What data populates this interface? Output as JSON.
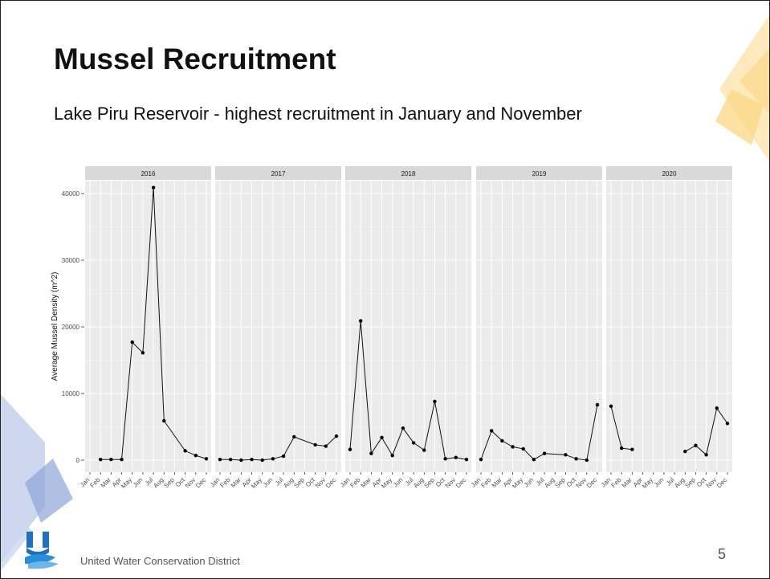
{
  "slide": {
    "title": "Mussel Recruitment",
    "subtitle": "Lake Piru Reservoir - highest recruitment in January and November",
    "footer_org": "United Water Conservation District",
    "page_number": "5",
    "accent_colors": {
      "yellow": "#fbd784",
      "blue": "#b8c7e8"
    }
  },
  "chart_data": {
    "type": "line",
    "ylabel": "Average Mussel Density (m^2)",
    "ylim": [
      0,
      40000
    ],
    "yticks": [
      0,
      10000,
      20000,
      30000,
      40000
    ],
    "categories": [
      "Jan",
      "Feb",
      "Mar",
      "Apr",
      "May",
      "Jun",
      "Jul",
      "Aug",
      "Sep",
      "Oct",
      "Nov",
      "Dec"
    ],
    "grid": true,
    "panel_background": "#ebebeb",
    "strip_background": "#d9d9d9",
    "panels": [
      {
        "label": "2016",
        "points": [
          {
            "m": 2,
            "v": 100
          },
          {
            "m": 3,
            "v": 100
          },
          {
            "m": 4,
            "v": 100
          },
          {
            "m": 5,
            "v": 17700
          },
          {
            "m": 6,
            "v": 16100
          },
          {
            "m": 7,
            "v": 40900
          },
          {
            "m": 8,
            "v": 5900
          },
          {
            "m": 10,
            "v": 1400
          },
          {
            "m": 11,
            "v": 700
          },
          {
            "m": 12,
            "v": 200
          }
        ],
        "segments": [
          [
            0,
            1,
            2,
            3,
            4,
            5,
            6,
            7,
            8,
            9
          ]
        ]
      },
      {
        "label": "2017",
        "points": [
          {
            "m": 1,
            "v": 100
          },
          {
            "m": 2,
            "v": 100
          },
          {
            "m": 3,
            "v": 0
          },
          {
            "m": 4,
            "v": 100
          },
          {
            "m": 5,
            "v": 0
          },
          {
            "m": 6,
            "v": 200
          },
          {
            "m": 7,
            "v": 600
          },
          {
            "m": 8,
            "v": 3500
          },
          {
            "m": 10,
            "v": 2300
          },
          {
            "m": 11,
            "v": 2100
          },
          {
            "m": 12,
            "v": 3600
          }
        ],
        "segments": [
          [
            0,
            1,
            2,
            3,
            4,
            5,
            6,
            7,
            8,
            9,
            10
          ]
        ]
      },
      {
        "label": "2018",
        "points": [
          {
            "m": 1,
            "v": 1600
          },
          {
            "m": 2,
            "v": 20900
          },
          {
            "m": 3,
            "v": 1000
          },
          {
            "m": 4,
            "v": 3400
          },
          {
            "m": 5,
            "v": 700
          },
          {
            "m": 6,
            "v": 4800
          },
          {
            "m": 7,
            "v": 2600
          },
          {
            "m": 8,
            "v": 1500
          },
          {
            "m": 9,
            "v": 8800
          },
          {
            "m": 10,
            "v": 200
          },
          {
            "m": 11,
            "v": 400
          },
          {
            "m": 12,
            "v": 100
          }
        ],
        "segments": [
          [
            0,
            1,
            2,
            3,
            4,
            5,
            6,
            7,
            8,
            9,
            10,
            11
          ]
        ]
      },
      {
        "label": "2019",
        "points": [
          {
            "m": 1,
            "v": 100
          },
          {
            "m": 2,
            "v": 4400
          },
          {
            "m": 3,
            "v": 2900
          },
          {
            "m": 4,
            "v": 2000
          },
          {
            "m": 5,
            "v": 1700
          },
          {
            "m": 6,
            "v": 100
          },
          {
            "m": 7,
            "v": 1000
          },
          {
            "m": 9,
            "v": 800
          },
          {
            "m": 10,
            "v": 200
          },
          {
            "m": 11,
            "v": 0
          },
          {
            "m": 12,
            "v": 8300
          }
        ],
        "segments": [
          [
            0,
            1,
            2,
            3,
            4,
            5,
            6,
            7,
            8,
            9,
            10
          ]
        ]
      },
      {
        "label": "2020",
        "points": [
          {
            "m": 1,
            "v": 8100
          },
          {
            "m": 2,
            "v": 1800
          },
          {
            "m": 3,
            "v": 1600
          },
          {
            "m": 8,
            "v": 1300
          },
          {
            "m": 9,
            "v": 2200
          },
          {
            "m": 10,
            "v": 800
          },
          {
            "m": 11,
            "v": 7800
          },
          {
            "m": 12,
            "v": 5500
          }
        ],
        "segments": [
          [
            0,
            1,
            2
          ],
          [
            3,
            4,
            5,
            6,
            7
          ]
        ]
      }
    ]
  }
}
